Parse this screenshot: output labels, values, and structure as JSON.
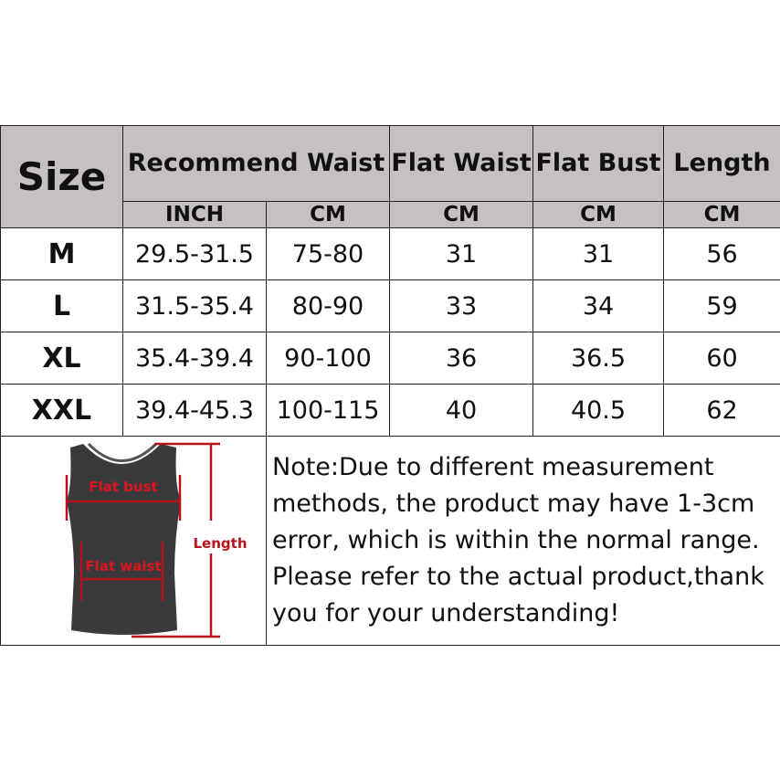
{
  "header": {
    "size": "Size",
    "recommend_waist": "Recommend Waist",
    "flat_waist": "Flat Waist",
    "flat_bust": "Flat Bust",
    "length": "Length",
    "units": [
      "INCH",
      "CM",
      "CM",
      "CM",
      "CM"
    ]
  },
  "rows": [
    {
      "size": "M",
      "inch": "29.5-31.5",
      "cm": "75-80",
      "flat_waist": "31",
      "flat_bust": "31",
      "length": "56"
    },
    {
      "size": "L",
      "inch": "31.5-35.4",
      "cm": "80-90",
      "flat_waist": "33",
      "flat_bust": "34",
      "length": "59"
    },
    {
      "size": "XL",
      "inch": "35.4-39.4",
      "cm": "90-100",
      "flat_waist": "36",
      "flat_bust": "36.5",
      "length": "60"
    },
    {
      "size": "XXL",
      "inch": "39.4-45.3",
      "cm": "100-115",
      "flat_waist": "40",
      "flat_bust": "40.5",
      "length": "62"
    }
  ],
  "diagram": {
    "flat_bust_label": "Flat bust",
    "flat_waist_label": "Flat waist",
    "length_label": "Length",
    "accent_color": "#c8102e",
    "garment_color": "#3a3a3c"
  },
  "note": "Note:Due to different measurement methods, the product may have 1-3cm error, which is within the normal range. Please refer to the actual product,thank you for your understanding!"
}
